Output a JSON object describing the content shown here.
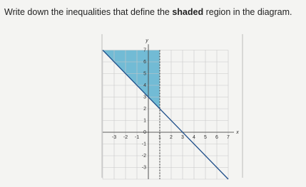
{
  "question": {
    "before": "Write down the inequalities that define the ",
    "bold": "shaded",
    "after": " region in the diagram."
  },
  "graph": {
    "x_label": "x",
    "y_label": "y",
    "origin_label": "0",
    "x_ticks": [
      -3,
      -2,
      -1,
      1,
      2,
      3,
      4,
      5,
      6,
      7
    ],
    "y_ticks": [
      7,
      6,
      5,
      4,
      3,
      2,
      1,
      -1,
      -2,
      -3
    ]
  }
}
